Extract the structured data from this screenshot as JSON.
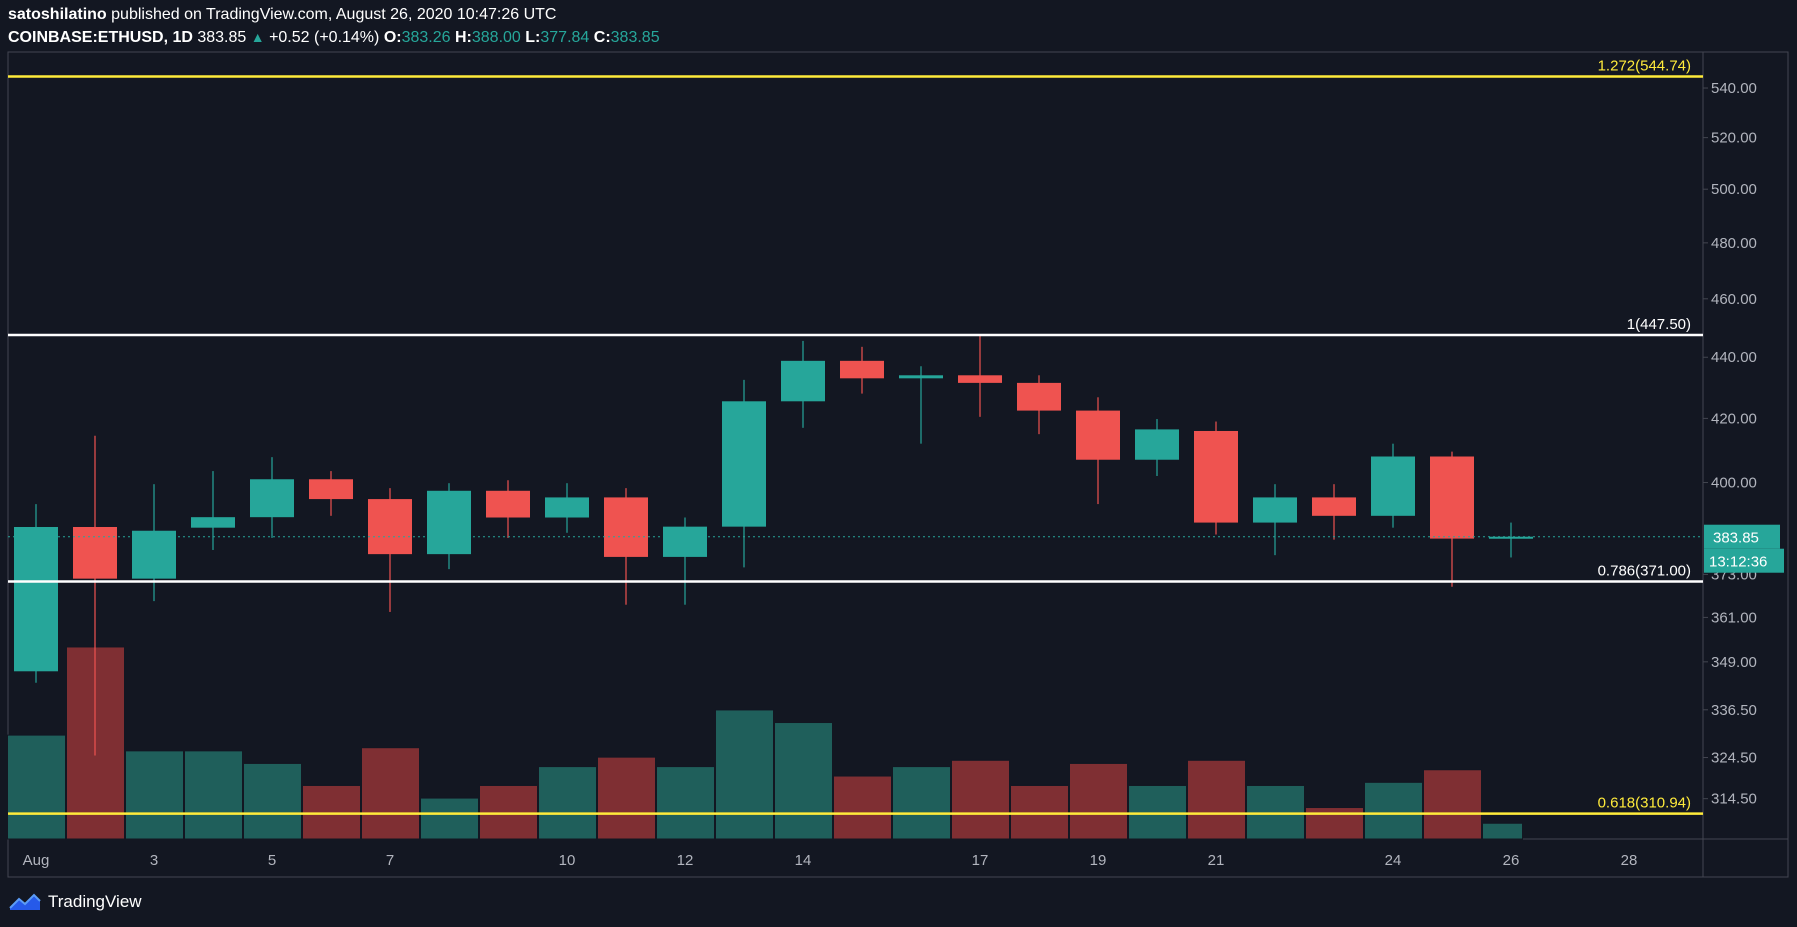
{
  "header": {
    "author": "satoshilatino",
    "publish_text": "published on TradingView.com, August 26, 2020 10:47:26 UTC",
    "symbol": "COINBASE:ETHUSD, 1D",
    "last": "383.85",
    "change_arrow": "▲",
    "change": "+0.52 (+0.14%)",
    "open_label": "O:",
    "open": "383.26",
    "high_label": "H:",
    "high": "388.00",
    "low_label": "L:",
    "low": "377.84",
    "close_label": "C:",
    "close": "383.85"
  },
  "brand": {
    "name": "TradingView",
    "icon": "tradingview-logo-icon"
  },
  "colors": {
    "background": "#131722",
    "up": "#26a69a",
    "down": "#ef5350",
    "volume_up": "#1f5f5b",
    "volume_down": "#7f2f33",
    "fib_yellow": "#ffeb3b",
    "fib_white": "#ffffff",
    "grid_border": "#434651",
    "axis_text": "#b2b5be"
  },
  "chart_data": {
    "type": "candlestick",
    "y_scale": "log",
    "ylim": [
      305,
      555
    ],
    "price_ticks": [
      "540.00",
      "520.00",
      "500.00",
      "480.00",
      "460.00",
      "440.00",
      "420.00",
      "400.00",
      "373.00",
      "361.00",
      "349.00",
      "336.50",
      "324.50",
      "314.50"
    ],
    "x_tick_labels": [
      {
        "day": 1,
        "label": "Aug"
      },
      {
        "day": 3,
        "label": "3"
      },
      {
        "day": 5,
        "label": "5"
      },
      {
        "day": 7,
        "label": "7"
      },
      {
        "day": 10,
        "label": "10"
      },
      {
        "day": 12,
        "label": "12"
      },
      {
        "day": 14,
        "label": "14"
      },
      {
        "day": 17,
        "label": "17"
      },
      {
        "day": 19,
        "label": "19"
      },
      {
        "day": 21,
        "label": "21"
      },
      {
        "day": 24,
        "label": "24"
      },
      {
        "day": 26,
        "label": "26"
      },
      {
        "day": 28,
        "label": "28"
      }
    ],
    "candles": [
      {
        "day": 1,
        "open": 346.5,
        "high": 393.5,
        "low": 343.5,
        "close": 386.7,
        "volume": 0.33
      },
      {
        "day": 2,
        "open": 386.7,
        "high": 414.5,
        "low": 325.0,
        "close": 371.8,
        "volume": 0.61
      },
      {
        "day": 3,
        "open": 371.8,
        "high": 399.5,
        "low": 365.5,
        "close": 385.6,
        "volume": 0.28
      },
      {
        "day": 4,
        "open": 386.5,
        "high": 403.5,
        "low": 380.0,
        "close": 389.6,
        "volume": 0.28
      },
      {
        "day": 5,
        "open": 389.6,
        "high": 407.8,
        "low": 383.5,
        "close": 401.0,
        "volume": 0.24
      },
      {
        "day": 6,
        "open": 401.0,
        "high": 403.5,
        "low": 390.0,
        "close": 395.0,
        "volume": 0.17
      },
      {
        "day": 7,
        "open": 395.0,
        "high": 398.3,
        "low": 362.5,
        "close": 378.8,
        "volume": 0.29
      },
      {
        "day": 8,
        "open": 378.8,
        "high": 399.8,
        "low": 374.5,
        "close": 397.5,
        "volume": 0.13
      },
      {
        "day": 9,
        "open": 397.5,
        "high": 400.7,
        "low": 383.5,
        "close": 389.5,
        "volume": 0.17
      },
      {
        "day": 10,
        "open": 389.5,
        "high": 399.8,
        "low": 385.0,
        "close": 395.5,
        "volume": 0.23
      },
      {
        "day": 11,
        "open": 395.5,
        "high": 398.3,
        "low": 364.5,
        "close": 378.0,
        "volume": 0.26
      },
      {
        "day": 12,
        "open": 378.0,
        "high": 389.5,
        "low": 364.5,
        "close": 386.8,
        "volume": 0.23
      },
      {
        "day": 13,
        "open": 386.8,
        "high": 432.5,
        "low": 375.0,
        "close": 425.5,
        "volume": 0.41
      },
      {
        "day": 14,
        "open": 425.5,
        "high": 445.5,
        "low": 417.0,
        "close": 438.8,
        "volume": 0.37
      },
      {
        "day": 15,
        "open": 438.8,
        "high": 443.5,
        "low": 428.0,
        "close": 433.0,
        "volume": 0.2
      },
      {
        "day": 16,
        "open": 433.0,
        "high": 437.0,
        "low": 412.0,
        "close": 434.0,
        "volume": 0.23
      },
      {
        "day": 17,
        "open": 434.0,
        "high": 447.5,
        "low": 420.5,
        "close": 431.5,
        "volume": 0.25
      },
      {
        "day": 18,
        "open": 431.5,
        "high": 434.0,
        "low": 415.0,
        "close": 422.5,
        "volume": 0.17
      },
      {
        "day": 19,
        "open": 422.5,
        "high": 426.8,
        "low": 393.5,
        "close": 407.0,
        "volume": 0.24
      },
      {
        "day": 20,
        "open": 407.0,
        "high": 419.8,
        "low": 402.0,
        "close": 416.5,
        "volume": 0.17
      },
      {
        "day": 21,
        "open": 416.0,
        "high": 419.0,
        "low": 384.5,
        "close": 388.0,
        "volume": 0.25
      },
      {
        "day": 22,
        "open": 388.0,
        "high": 399.5,
        "low": 378.5,
        "close": 395.5,
        "volume": 0.17
      },
      {
        "day": 23,
        "open": 395.5,
        "high": 399.5,
        "low": 383.0,
        "close": 390.0,
        "volume": 0.1
      },
      {
        "day": 24,
        "open": 390.0,
        "high": 412.0,
        "low": 386.5,
        "close": 408.0,
        "volume": 0.18
      },
      {
        "day": 25,
        "open": 408.0,
        "high": 409.5,
        "low": 369.5,
        "close": 383.3,
        "volume": 0.22
      },
      {
        "day": 26,
        "open": 383.26,
        "high": 388.0,
        "low": 377.84,
        "close": 383.85,
        "volume": 0.05
      }
    ],
    "fib_levels": [
      {
        "ratio": "1.272",
        "price": 544.74,
        "label": "1.272(544.74)",
        "color": "#ffeb3b"
      },
      {
        "ratio": "1",
        "price": 447.5,
        "label": "1(447.50)",
        "color": "#ffffff"
      },
      {
        "ratio": "0.786",
        "price": 371.0,
        "label": "0.786(371.00)",
        "color": "#ffffff"
      },
      {
        "ratio": "0.618",
        "price": 310.94,
        "label": "0.618(310.94)",
        "color": "#ffeb3b"
      }
    ],
    "last_price": {
      "value": 383.85,
      "label": "383.85",
      "countdown": "13:12:36"
    }
  }
}
